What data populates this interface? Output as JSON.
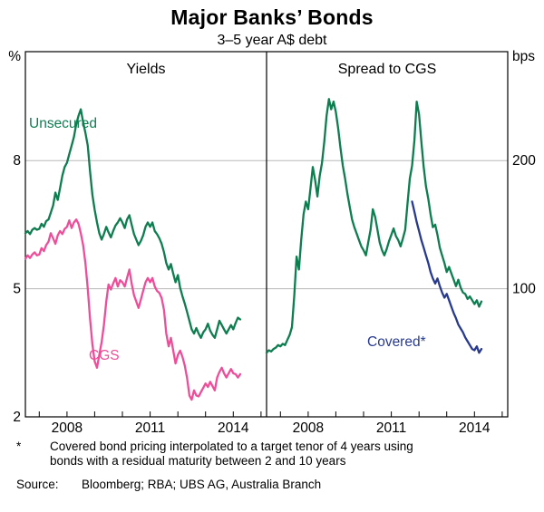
{
  "title": "Major Banks’ Bonds",
  "subtitle": "3–5 year A$ debt",
  "left_axis_unit": "%",
  "right_axis_unit": "bps",
  "panels": {
    "left_title": "Yields",
    "right_title": "Spread to CGS"
  },
  "series_labels": {
    "unsecured": "Unsecured",
    "cgs": "CGS",
    "covered": "Covered*"
  },
  "colors": {
    "green": "#0e7d50",
    "pink": "#ef4d9a",
    "blue": "#283a8f",
    "grid": "#b8b8b8",
    "axis": "#000000"
  },
  "footnote": {
    "marker": "*",
    "line1": "Covered bond pricing interpolated to a target tenor of 4 years using",
    "line2": "bonds with a residual maturity between 2 and 10 years"
  },
  "source": {
    "label": "Source:",
    "text": "Bloomberg; RBA; UBS AG, Australia Branch"
  },
  "chart_data": [
    {
      "type": "line",
      "panel_title": "Yields",
      "y_unit": "%",
      "axis_side": "left",
      "xlim": [
        2006.5,
        2015.2
      ],
      "ylim": [
        2,
        10.55
      ],
      "yticks": [
        2,
        5,
        8
      ],
      "grid_y": [
        5,
        8
      ],
      "xticks": [
        {
          "v": 2008,
          "label": "2008"
        },
        {
          "v": 2011,
          "label": "2011"
        },
        {
          "v": 2014,
          "label": "2014"
        }
      ],
      "xticks_minor": [
        2007,
        2008,
        2009,
        2010,
        2011,
        2012,
        2013,
        2014,
        2015
      ],
      "x_unit": "year",
      "series": [
        {
          "name": "Unsecured",
          "color_key": "green",
          "x_start": 2006.5,
          "x_step": 0.0833333,
          "values": [
            6.3,
            6.35,
            6.28,
            6.38,
            6.42,
            6.38,
            6.4,
            6.52,
            6.45,
            6.58,
            6.62,
            6.78,
            6.95,
            7.25,
            7.08,
            7.35,
            7.65,
            7.85,
            7.95,
            8.15,
            8.35,
            8.55,
            8.85,
            9.05,
            9.2,
            8.9,
            8.65,
            8.35,
            7.75,
            7.2,
            6.85,
            6.55,
            6.3,
            6.15,
            6.28,
            6.45,
            6.32,
            6.2,
            6.35,
            6.48,
            6.55,
            6.65,
            6.55,
            6.42,
            6.62,
            6.72,
            6.5,
            6.28,
            6.15,
            6.02,
            6.12,
            6.25,
            6.45,
            6.55,
            6.45,
            6.55,
            6.35,
            6.28,
            6.18,
            6.05,
            5.85,
            5.6,
            5.45,
            5.58,
            5.35,
            5.15,
            5.32,
            5.02,
            4.82,
            4.65,
            4.45,
            4.25,
            4.05,
            3.95,
            4.08,
            3.95,
            3.85,
            3.98,
            4.05,
            4.18,
            4.02,
            3.92,
            3.85,
            4.05,
            4.25,
            4.15,
            4.05,
            3.95,
            4.05,
            4.15,
            4.05,
            4.2,
            4.32,
            4.28
          ]
        },
        {
          "name": "CGS",
          "color_key": "pink",
          "x_start": 2006.5,
          "x_step": 0.0833333,
          "values": [
            5.7,
            5.78,
            5.72,
            5.8,
            5.85,
            5.78,
            5.8,
            5.95,
            5.88,
            6.02,
            6.1,
            6.3,
            6.18,
            6.05,
            6.25,
            6.35,
            6.28,
            6.4,
            6.45,
            6.6,
            6.42,
            6.55,
            6.62,
            6.52,
            6.3,
            6.02,
            5.6,
            5.0,
            4.3,
            3.7,
            3.3,
            3.15,
            3.45,
            3.75,
            4.15,
            4.7,
            5.1,
            4.98,
            5.12,
            5.25,
            5.05,
            5.2,
            5.15,
            5.05,
            5.25,
            5.45,
            5.12,
            4.85,
            4.7,
            4.55,
            4.75,
            4.95,
            5.15,
            5.25,
            5.15,
            5.25,
            5.05,
            4.95,
            4.9,
            4.78,
            4.5,
            3.95,
            3.65,
            3.85,
            3.55,
            3.25,
            3.45,
            3.55,
            3.4,
            3.2,
            2.9,
            2.5,
            2.4,
            2.62,
            2.5,
            2.48,
            2.58,
            2.68,
            2.78,
            2.7,
            2.82,
            2.72,
            2.62,
            2.92,
            3.05,
            3.15,
            3.02,
            2.92,
            3.02,
            3.12,
            3.02,
            3.0,
            2.92,
            3.0
          ]
        }
      ]
    },
    {
      "type": "line",
      "panel_title": "Spread to CGS",
      "y_unit": "bps",
      "axis_side": "right",
      "xlim": [
        2006.5,
        2015.2
      ],
      "ylim": [
        0,
        285
      ],
      "yticks": [
        100,
        200
      ],
      "grid_y": [
        100,
        200
      ],
      "xticks": [
        {
          "v": 2008,
          "label": "2008"
        },
        {
          "v": 2011,
          "label": "2011"
        },
        {
          "v": 2014,
          "label": "2014"
        }
      ],
      "xticks_minor": [
        2007,
        2008,
        2009,
        2010,
        2011,
        2012,
        2013,
        2014,
        2015
      ],
      "x_unit": "year",
      "series": [
        {
          "name": "Unsecured spread to CGS",
          "color_key": "green",
          "x_start": 2006.5,
          "x_step": 0.0833333,
          "values": [
            50,
            52,
            51,
            53,
            54,
            56,
            55,
            57,
            56,
            60,
            64,
            70,
            95,
            125,
            115,
            138,
            158,
            168,
            162,
            178,
            195,
            185,
            172,
            188,
            198,
            215,
            235,
            248,
            240,
            246,
            238,
            225,
            210,
            196,
            186,
            174,
            164,
            154,
            148,
            143,
            138,
            133,
            130,
            126,
            136,
            146,
            162,
            156,
            146,
            136,
            130,
            126,
            131,
            137,
            142,
            147,
            141,
            138,
            133,
            139,
            146,
            166,
            186,
            196,
            216,
            246,
            236,
            215,
            195,
            180,
            170,
            158,
            148,
            150,
            142,
            132,
            126,
            120,
            113,
            117,
            112,
            107,
            102,
            107,
            101,
            97,
            96,
            92,
            94,
            91,
            88,
            91,
            86,
            90
          ]
        },
        {
          "name": "Covered",
          "color_key": "blue",
          "x_start": 2011.75,
          "x_step": 0.0833333,
          "values": [
            168,
            160,
            152,
            145,
            138,
            132,
            126,
            120,
            113,
            108,
            104,
            108,
            102,
            97,
            93,
            96,
            91,
            86,
            81,
            77,
            72,
            69,
            66,
            62,
            59,
            56,
            53,
            52,
            55,
            50,
            53
          ]
        }
      ]
    }
  ]
}
